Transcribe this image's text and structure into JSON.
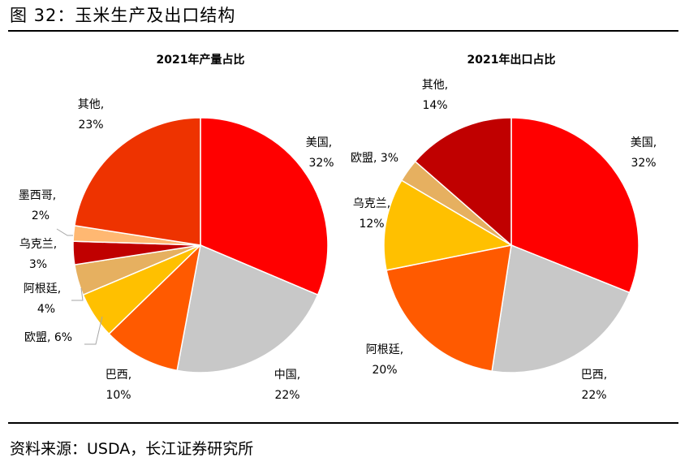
{
  "figure": {
    "title": "图 32：玉米生产及出口结构",
    "source": "资料来源：USDA，长江证券研究所"
  },
  "chart_data": [
    {
      "type": "pie",
      "title": "2021年产量占比",
      "unit": "%",
      "slices": [
        {
          "label": "美国",
          "value": 32,
          "color": "#FF0000"
        },
        {
          "label": "中国",
          "value": 22,
          "color": "#C8C8C8"
        },
        {
          "label": "巴西",
          "value": 10,
          "color": "#FF5A00"
        },
        {
          "label": "欧盟",
          "value": 6,
          "color": "#FFC000"
        },
        {
          "label": "阿根廷",
          "value": 4,
          "color": "#E6B060"
        },
        {
          "label": "乌克兰",
          "value": 3,
          "color": "#C00000"
        },
        {
          "label": "墨西哥",
          "value": 2,
          "color": "#FFB872"
        },
        {
          "label": "其他",
          "value": 23,
          "color": "#EE3300"
        }
      ]
    },
    {
      "type": "pie",
      "title": "2021年出口占比",
      "unit": "%",
      "slices": [
        {
          "label": "美国",
          "value": 32,
          "color": "#FF0000"
        },
        {
          "label": "巴西",
          "value": 22,
          "color": "#C8C8C8"
        },
        {
          "label": "阿根廷",
          "value": 20,
          "color": "#FF5A00"
        },
        {
          "label": "乌克兰",
          "value": 12,
          "color": "#FFC000"
        },
        {
          "label": "欧盟",
          "value": 3,
          "color": "#E6B060"
        },
        {
          "label": "其他",
          "value": 14,
          "color": "#C00000"
        }
      ]
    }
  ]
}
